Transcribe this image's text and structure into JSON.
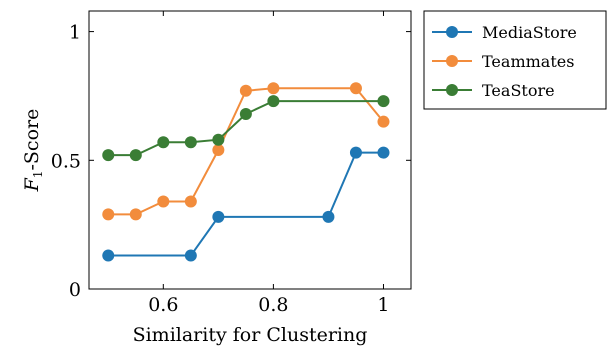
{
  "chart_data": {
    "type": "line",
    "xlabel": "Similarity for Clustering",
    "ylabel_main": "F",
    "ylabel_sub": "1",
    "ylabel_rest": "-Score",
    "xlim": [
      0.465,
      1.05
    ],
    "ylim": [
      0,
      1.08
    ],
    "xticks": [
      {
        "v": 0.6,
        "label": "0.6"
      },
      {
        "v": 0.8,
        "label": "0.8"
      },
      {
        "v": 1.0,
        "label": "1"
      }
    ],
    "yticks": [
      {
        "v": 0,
        "label": "0"
      },
      {
        "v": 0.5,
        "label": "0.5"
      },
      {
        "v": 1.0,
        "label": "1"
      }
    ],
    "grid": false,
    "legend_position": "outside-top-right",
    "series": [
      {
        "name": "MediaStore",
        "color": "#1f77b4",
        "x": [
          0.5,
          0.65,
          0.7,
          0.9,
          0.95,
          1.0
        ],
        "y": [
          0.13,
          0.13,
          0.28,
          0.28,
          0.53,
          0.53
        ]
      },
      {
        "name": "Teammates",
        "color": "#f28c3c",
        "x": [
          0.5,
          0.55,
          0.6,
          0.65,
          0.7,
          0.75,
          0.8,
          0.95,
          1.0
        ],
        "y": [
          0.29,
          0.29,
          0.34,
          0.34,
          0.54,
          0.77,
          0.78,
          0.78,
          0.65
        ]
      },
      {
        "name": "TeaStore",
        "color": "#3a7d35",
        "x": [
          0.5,
          0.55,
          0.6,
          0.65,
          0.7,
          0.75,
          0.8,
          1.0
        ],
        "y": [
          0.52,
          0.52,
          0.57,
          0.57,
          0.58,
          0.68,
          0.73,
          0.73
        ]
      }
    ]
  }
}
